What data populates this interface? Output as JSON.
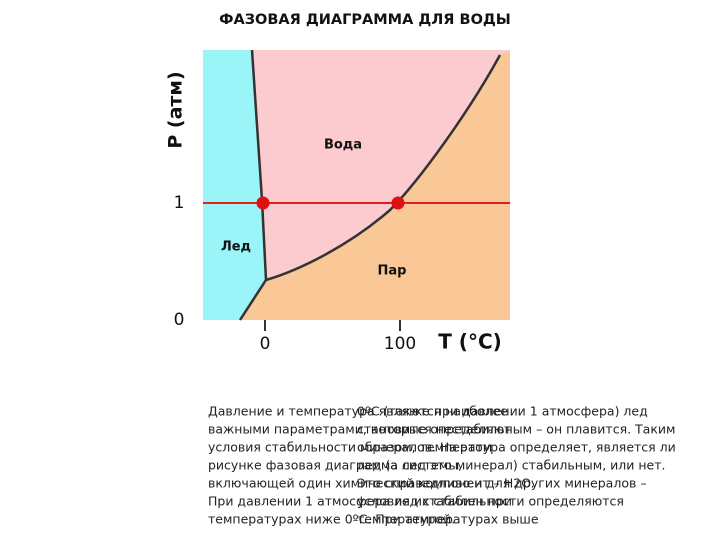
{
  "title": "ФАЗОВАЯ ДИАГРАММА ДЛЯ ВОДЫ",
  "diagram": {
    "y_axis_label": "P (атм)",
    "x_axis_label": "T (°C)",
    "y_ticks": [
      "1",
      "0"
    ],
    "x_ticks": [
      "0",
      "100"
    ],
    "regions": [
      "Вода",
      "Лед",
      "Пар"
    ]
  },
  "paragraphs": [
    [
      "Давление и температура являются наиболее",
      "важными параметрами, которые определяют",
      "условия стабильности минералов. На этом",
      "рисунке фазовая диаграмма системы,",
      "включающей один химический компонент – H2O.",
      "При давлении 1 атмосфера лед стабилен при",
      "температурах ниже 0ºС. При температурах выше"
    ],
    [
      "0ºС (также при давлении 1 атмосфера) лед",
      "становится нестабильным – он плавится. Таким",
      "образом, температура определяет, является ли",
      "лед (а лед это минерал) стабильным, или нет.",
      "Это справедливо и для других минералов –",
      "условия их стабильности определяются",
      "температурой."
    ]
  ]
}
